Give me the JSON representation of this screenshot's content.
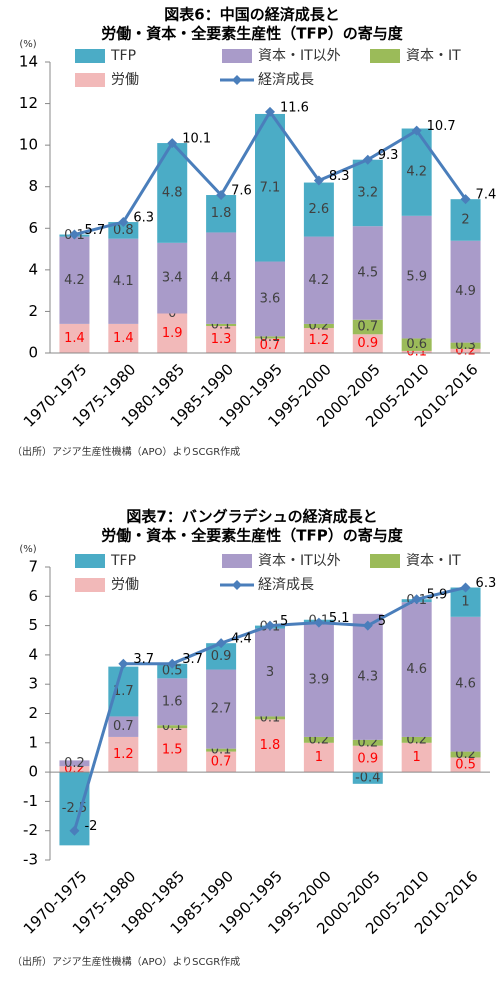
{
  "chart_data": [
    {
      "type": "bar",
      "stacked": true,
      "title": [
        "図表6：中国の経済成長と",
        "労働・資本・全要素生産性（TFP）の寄与度"
      ],
      "y_label": "(%)",
      "note": "（出所）アジア生産性機構（APO）よりSCGR作成",
      "categories": [
        "1970-1975",
        "1975-1980",
        "1980-1985",
        "1985-1990",
        "1990-1995",
        "1995-2000",
        "2000-2005",
        "2005-2010",
        "2010-2016"
      ],
      "ylim": [
        0,
        14
      ],
      "yticks": [
        0,
        2,
        4,
        6,
        8,
        10,
        12,
        14
      ],
      "series": [
        {
          "name": "TFP",
          "type": "bar",
          "color": "#4bacc6",
          "values": [
            0.1,
            0.8,
            4.8,
            1.8,
            7.1,
            2.6,
            3.2,
            4.2,
            2
          ]
        },
        {
          "name": "資本・IT以外",
          "type": "bar",
          "color": "#a99bc9",
          "values": [
            4.2,
            4.1,
            3.4,
            4.4,
            3.6,
            4.2,
            4.5,
            5.9,
            4.9
          ]
        },
        {
          "name": "資本・IT",
          "type": "bar",
          "color": "#9bbb59",
          "values": [
            null,
            null,
            0,
            0.1,
            0.1,
            0.2,
            0.7,
            0.6,
            0.3
          ]
        },
        {
          "name": "労働",
          "type": "bar",
          "color": "#f2b9b9",
          "label_color": "#ff0000",
          "values": [
            1.4,
            1.4,
            1.9,
            1.3,
            0.7,
            1.2,
            0.9,
            0.1,
            0.2
          ]
        },
        {
          "name": "経済成長",
          "type": "line",
          "color": "#4a7ebb",
          "values": [
            5.7,
            6.3,
            10.1,
            7.6,
            11.6,
            8.3,
            9.3,
            10.7,
            7.4
          ]
        }
      ]
    },
    {
      "type": "bar",
      "stacked": true,
      "title": [
        "図表7：バングラデシュの経済成長と",
        "労働・資本・全要素生産性（TFP）の寄与度"
      ],
      "y_label": "(%)",
      "note": "（出所）アジア生産性機構（APO）よりSCGR作成",
      "categories": [
        "1970-1975",
        "1975-1980",
        "1980-1985",
        "1985-1990",
        "1990-1995",
        "1995-2000",
        "2000-2005",
        "2005-2010",
        "2010-2016"
      ],
      "ylim": [
        -3,
        7
      ],
      "yticks": [
        -3,
        -2,
        -1,
        0,
        1,
        2,
        3,
        4,
        5,
        6,
        7
      ],
      "series": [
        {
          "name": "TFP",
          "type": "bar",
          "color": "#4bacc6",
          "values": [
            -2.5,
            1.7,
            0.5,
            0.9,
            0.1,
            0.1,
            -0.4,
            0.1,
            1
          ]
        },
        {
          "name": "資本・IT以外",
          "type": "bar",
          "color": "#a99bc9",
          "values": [
            0.2,
            0.7,
            1.6,
            2.7,
            3,
            3.9,
            4.3,
            4.6,
            4.6
          ]
        },
        {
          "name": "資本・IT",
          "type": "bar",
          "color": "#9bbb59",
          "values": [
            null,
            null,
            0.1,
            0.1,
            0.1,
            0.2,
            0.2,
            0.2,
            0.2
          ]
        },
        {
          "name": "労働",
          "type": "bar",
          "color": "#f2b9b9",
          "label_color": "#ff0000",
          "values": [
            0.2,
            1.2,
            1.5,
            0.7,
            1.8,
            1,
            0.9,
            1,
            0.5
          ]
        },
        {
          "name": "経済成長",
          "type": "line",
          "color": "#4a7ebb",
          "values": [
            -2,
            3.7,
            3.7,
            4.4,
            5,
            5.1,
            5,
            5.9,
            6.3
          ]
        }
      ]
    }
  ]
}
